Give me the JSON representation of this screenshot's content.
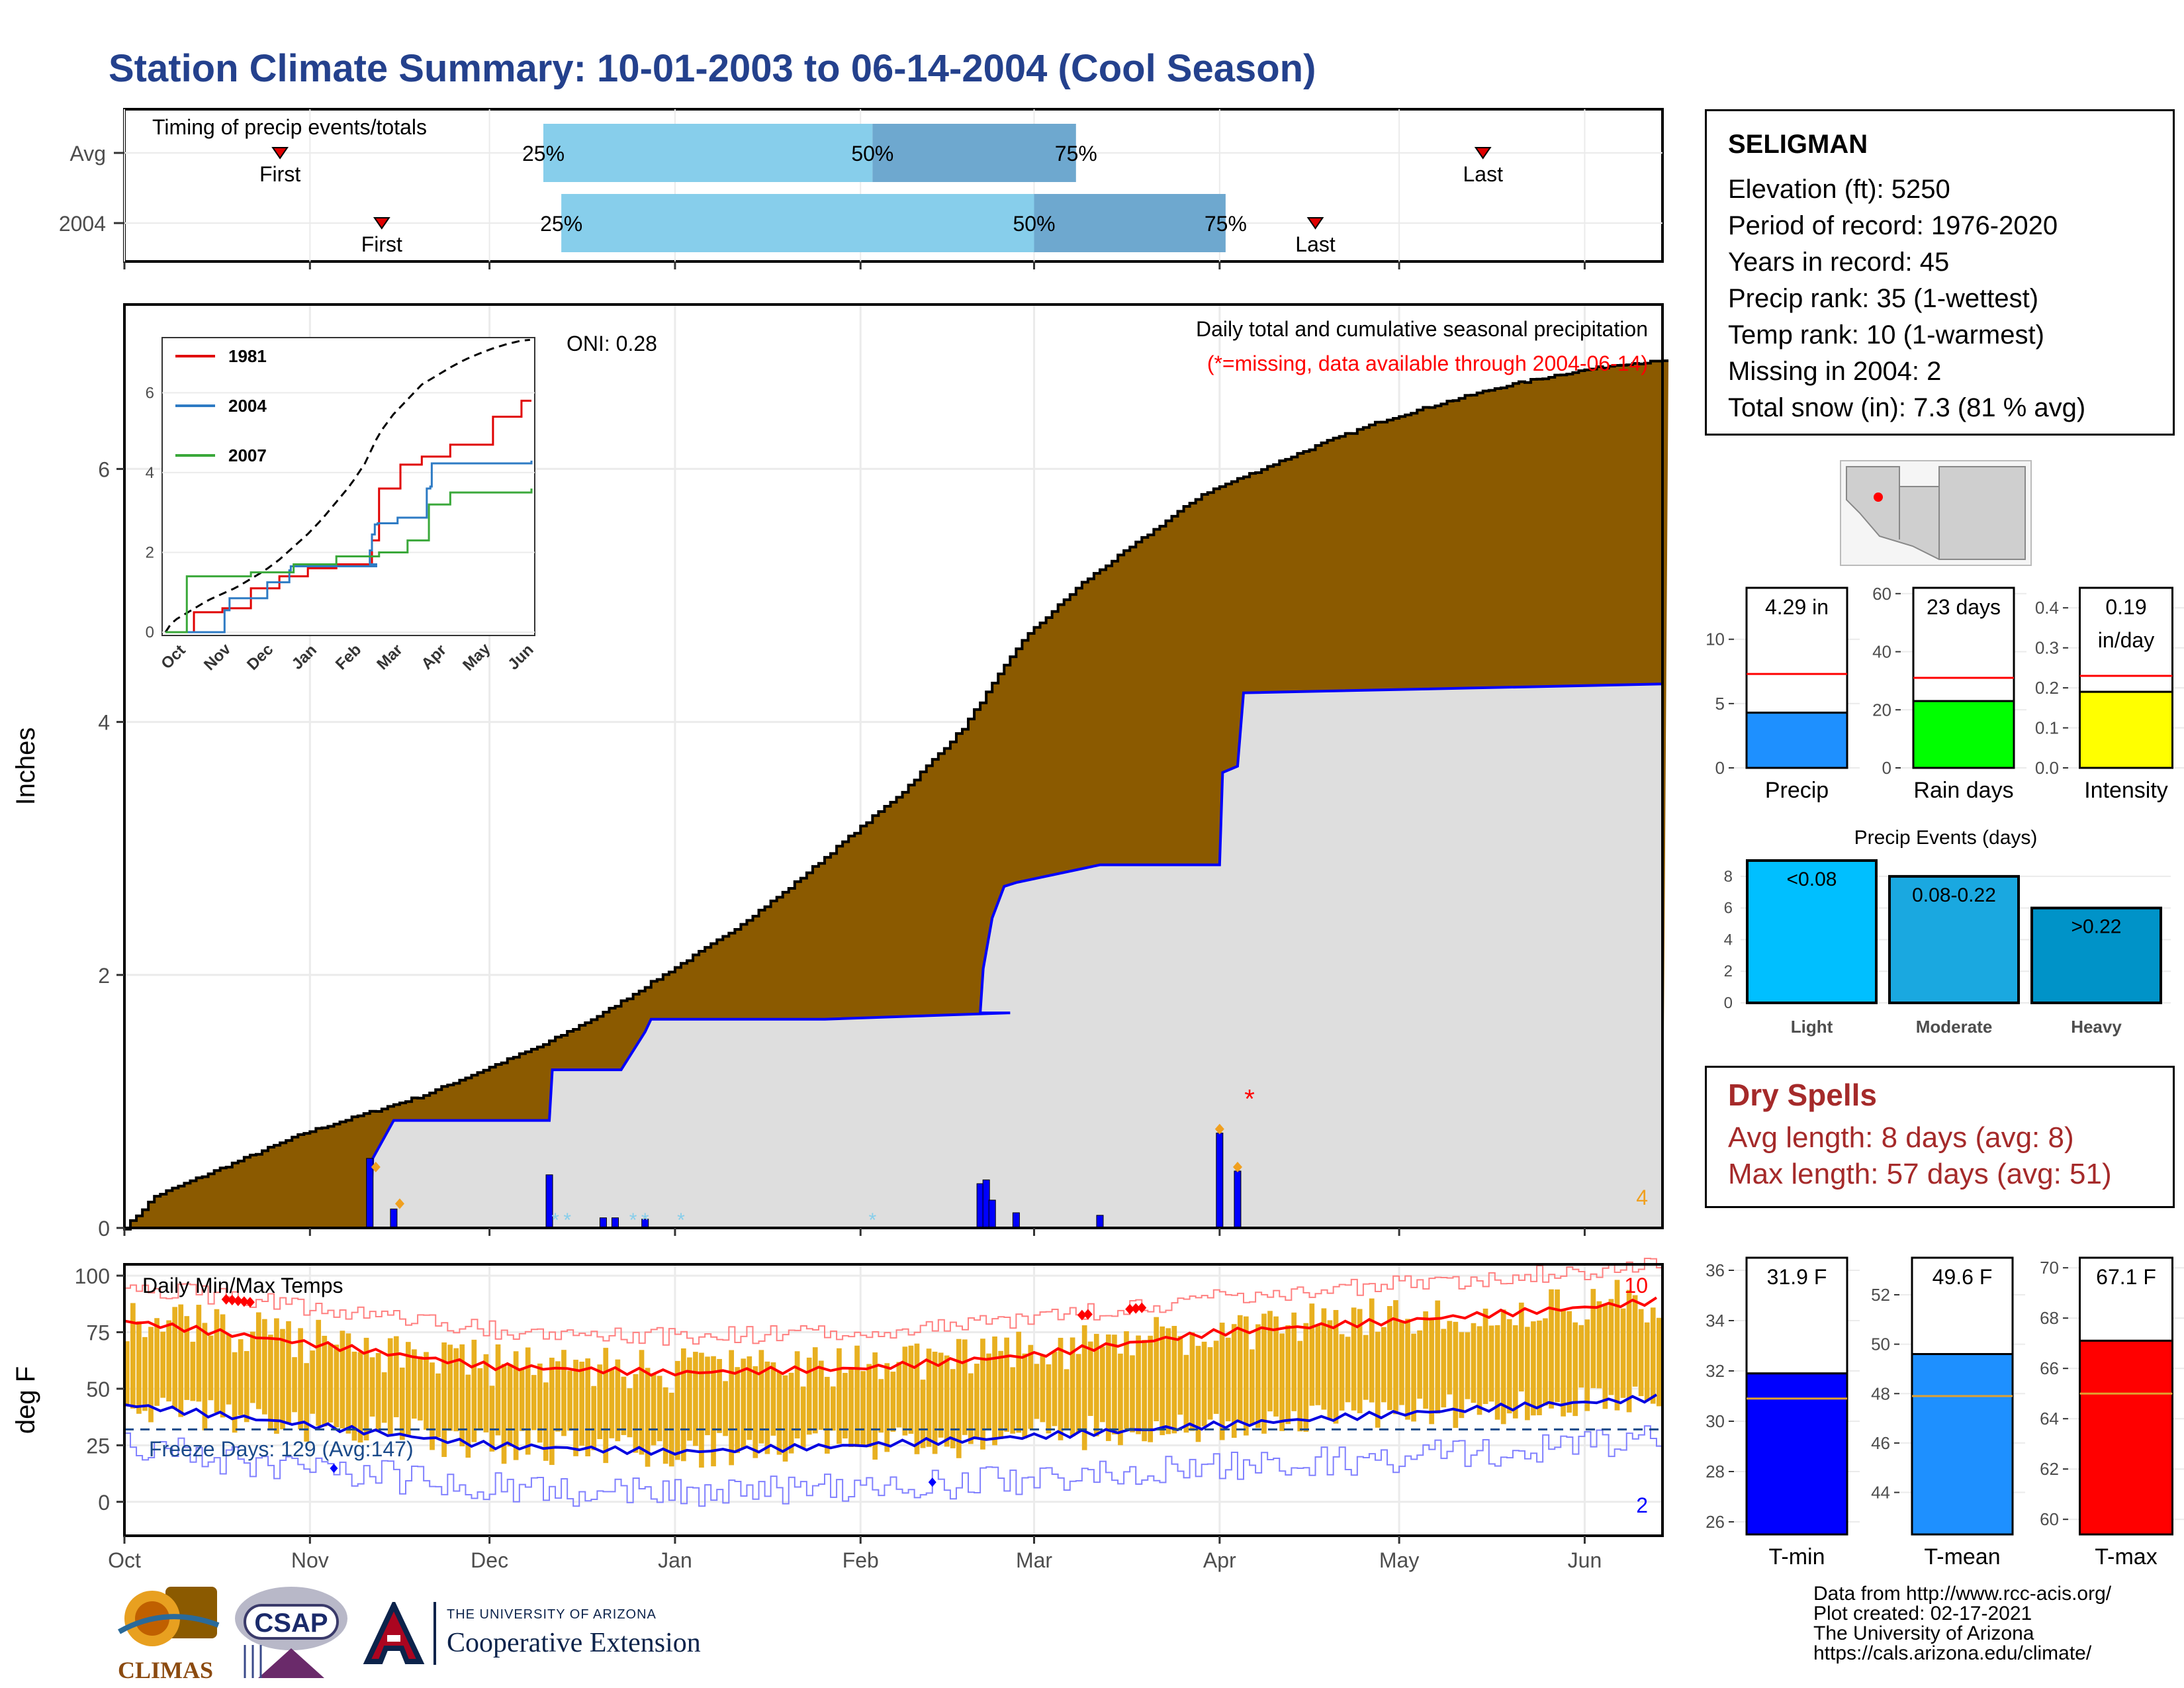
{
  "page_title": "Station Climate Summary: 10-01-2003 to 06-14-2004 (Cool Season)",
  "colors": {
    "title": "#24418d",
    "cumulative_fill": "#8b5a00",
    "avg_fill": "#dedede",
    "line_blue": "#0000ff",
    "quartile_light": "#87ceeb",
    "quartile_dark": "#6ea8cf",
    "temp_bar": "#e8b020",
    "dry_spell_text": "#a52a2a",
    "missing_text": "#ff0000"
  },
  "station": {
    "name": "SELIGMAN",
    "lines": [
      "Elevation (ft): 5250",
      "Period of record: 1976-2020",
      "Years in record: 45",
      "Precip rank: 35 (1-wettest)",
      "Temp rank: 10 (1-warmest)",
      "Missing in 2004: 2",
      "Total snow (in): 7.3 (81 % avg)"
    ]
  },
  "dry_spells": {
    "title": "Dry Spells",
    "avg_length": "Avg length: 8 days (avg: 8)",
    "max_length": "Max length: 57 days (avg: 51)"
  },
  "footer": {
    "lines": [
      "Data from http://www.rcc-acis.org/",
      "Plot created: 02-17-2021",
      "The University of Arizona",
      "https://cals.arizona.edu/climate/"
    ]
  },
  "logos": {
    "climas": "CLIMAS",
    "csap": "CSAP",
    "ua_header": "THE UNIVERSITY OF ARIZONA",
    "ua_name": "Cooperative Extension"
  },
  "chart_data": [
    {
      "id": "timing",
      "type": "bar",
      "title": "Timing of precip events/totals",
      "rows": [
        {
          "label": "Avg",
          "first": "Oct 27",
          "q25": "Dec 10",
          "q50": "Feb 3",
          "q75": "Mar 8",
          "last": "May 15"
        },
        {
          "label": "2004",
          "first": "Nov 13",
          "q25": "Dec 13",
          "q50": "Mar 1",
          "q75": "Apr 2",
          "last": "Apr 17"
        }
      ],
      "quartile_labels": [
        "25%",
        "50%",
        "75%"
      ],
      "marker_labels": [
        "First",
        "Last"
      ],
      "xlim": [
        0,
        257
      ]
    },
    {
      "id": "cumulative",
      "type": "area",
      "title": "Daily total and cumulative seasonal precipitation",
      "subtitle": "(*=missing, data available through 2004-06-14)",
      "annotation": "ONI: 0.28",
      "corner_count": "4",
      "ylabel": "Inches",
      "ylim": [
        0,
        7.3
      ],
      "yticks": [
        0,
        2,
        4,
        6
      ],
      "xlim": [
        0,
        257
      ],
      "month_labels": [
        "Oct",
        "Nov",
        "Dec",
        "Jan",
        "Feb",
        "Mar",
        "Apr",
        "May",
        "Jun"
      ],
      "month_days": [
        0,
        31,
        61,
        92,
        123,
        152,
        183,
        213,
        244
      ],
      "avg_cumulative": {
        "x": [
          0,
          5,
          10,
          20,
          30,
          40,
          50,
          55,
          60,
          70,
          80,
          90,
          100,
          110,
          120,
          130,
          140,
          145,
          150,
          160,
          170,
          180,
          190,
          200,
          210,
          220,
          230,
          240,
          250,
          257
        ],
        "y": [
          0,
          0.25,
          0.35,
          0.55,
          0.75,
          0.9,
          1.05,
          1.15,
          1.25,
          1.45,
          1.7,
          2.0,
          2.3,
          2.65,
          3.05,
          3.45,
          3.95,
          4.3,
          4.65,
          5.1,
          5.45,
          5.8,
          6.0,
          6.2,
          6.38,
          6.52,
          6.65,
          6.75,
          6.83,
          6.85
        ]
      },
      "season_cumulative": {
        "x": [
          0,
          41,
          41.5,
          45,
          71,
          71.5,
          83,
          87,
          88,
          117,
          148,
          143,
          143.5,
          145,
          147,
          149,
          163,
          183,
          183.5,
          186,
          187,
          257
        ],
        "y": [
          0,
          0,
          0.55,
          0.85,
          0.85,
          1.25,
          1.25,
          1.55,
          1.65,
          1.65,
          1.7,
          1.7,
          2.05,
          2.45,
          2.7,
          2.73,
          2.87,
          2.87,
          3.6,
          3.65,
          4.23,
          4.3
        ]
      },
      "daily_precip": {
        "x": [
          41,
          45,
          71,
          80,
          82,
          87,
          143,
          144,
          145,
          149,
          163,
          183,
          186
        ],
        "y": [
          0.55,
          0.15,
          0.42,
          0.08,
          0.08,
          0.07,
          0.35,
          0.38,
          0.22,
          0.12,
          0.1,
          0.75,
          0.45
        ]
      },
      "snow_days": [
        72,
        74,
        85,
        87,
        93,
        125
      ],
      "threshold_days": [
        42,
        46,
        183,
        186
      ],
      "missing_days": [
        188
      ]
    },
    {
      "id": "temperature",
      "type": "bar",
      "title": "Daily Min/Max Temps",
      "ylabel": "deg F",
      "ylim": [
        -15,
        105
      ],
      "yticks": [
        0,
        25,
        50,
        75,
        100
      ],
      "freeze_label": "Freeze Days: 129 (Avg:147)",
      "freeze_line": 32,
      "record_high_count": "10",
      "record_low_count": "2",
      "month_labels": [
        "Oct",
        "Nov",
        "Dec",
        "Jan",
        "Feb",
        "Mar",
        "Apr",
        "May",
        "Jun"
      ],
      "avg_max": {
        "x": [
          0,
          31,
          61,
          92,
          123,
          152,
          183,
          213,
          244,
          257
        ],
        "y": [
          80,
          70,
          60,
          57,
          59,
          65,
          75,
          80,
          86,
          89
        ]
      },
      "avg_min": {
        "x": [
          0,
          31,
          61,
          92,
          123,
          152,
          183,
          213,
          244,
          257
        ],
        "y": [
          43,
          34,
          25,
          22,
          25,
          29,
          34,
          39,
          44,
          46
        ]
      }
    },
    {
      "id": "precip-total",
      "type": "bar",
      "categories": [
        "Precip"
      ],
      "values": [
        4.29
      ],
      "avg": 7.3,
      "label": "4.29 in",
      "ylim": [
        0,
        14
      ],
      "yticks": [
        0,
        5,
        10
      ]
    },
    {
      "id": "rain-days",
      "type": "bar",
      "categories": [
        "Rain days"
      ],
      "values": [
        23
      ],
      "avg": 31,
      "label": "23 days",
      "ylim": [
        0,
        62
      ],
      "yticks": [
        0,
        20,
        40,
        60
      ]
    },
    {
      "id": "intensity",
      "type": "bar",
      "categories": [
        "Intensity"
      ],
      "values": [
        0.19
      ],
      "avg": 0.23,
      "label": [
        "0.19",
        "in/day"
      ],
      "ylim": [
        0,
        0.45
      ],
      "yticks": [
        0.0,
        0.1,
        0.2,
        0.3,
        0.4
      ]
    },
    {
      "id": "precip-events",
      "type": "bar",
      "title": "Precip Events (days)",
      "categories": [
        "Light",
        "Moderate",
        "Heavy"
      ],
      "bar_labels": [
        "<0.08",
        "0.08-0.22",
        ">0.22"
      ],
      "values": [
        9,
        8,
        6
      ],
      "ylim": [
        0,
        9
      ],
      "yticks": [
        0,
        2,
        4,
        6,
        8
      ]
    },
    {
      "id": "t-min",
      "type": "bar",
      "categories": [
        "T-min"
      ],
      "values": [
        31.9
      ],
      "avg": 30.9,
      "label": "31.9 F",
      "ylim": [
        25.5,
        36.5
      ],
      "yticks": [
        26,
        28,
        30,
        32,
        34,
        36
      ]
    },
    {
      "id": "t-mean",
      "type": "bar",
      "categories": [
        "T-mean"
      ],
      "values": [
        49.6
      ],
      "avg": 47.9,
      "label": "49.6 F",
      "ylim": [
        42.3,
        53.5
      ],
      "yticks": [
        44,
        46,
        48,
        50,
        52
      ]
    },
    {
      "id": "t-max",
      "type": "bar",
      "categories": [
        "T-max"
      ],
      "values": [
        67.1
      ],
      "avg": 65.0,
      "label": "67.1 F",
      "ylim": [
        59.4,
        70.4
      ],
      "yticks": [
        60,
        62,
        64,
        66,
        68,
        70
      ]
    }
  ]
}
